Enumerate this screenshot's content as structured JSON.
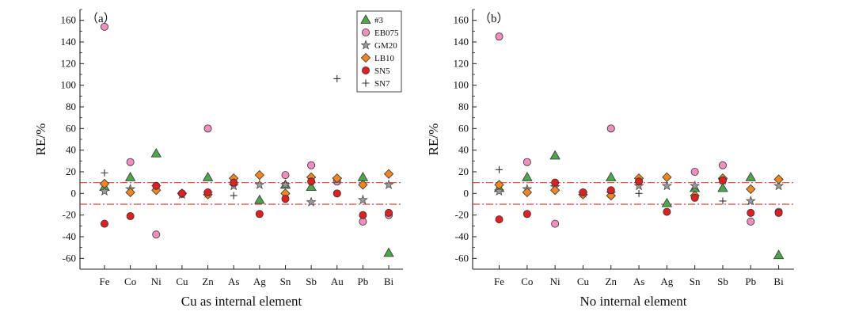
{
  "chart_data": [
    {
      "type": "scatter",
      "panel_label": "（a）",
      "xlabel": "Cu as internal element",
      "ylabel": "RE/%",
      "ylim": [
        -70,
        170
      ],
      "yticks": [
        -60,
        -40,
        -20,
        0,
        20,
        40,
        60,
        80,
        100,
        120,
        140,
        160
      ],
      "categories": [
        "Fe",
        "Co",
        "Ni",
        "Cu",
        "Zn",
        "As",
        "Ag",
        "Sn",
        "Sb",
        "Au",
        "Pb",
        "Bi"
      ],
      "reference_lines": [
        10,
        -10
      ],
      "legend": {
        "position": "top-right",
        "entries": [
          "#3",
          "EB075",
          "GM20",
          "LB10",
          "SN5",
          "SN7"
        ]
      },
      "series": [
        {
          "name": "#3",
          "marker": "triangle",
          "color": "#4aa84a",
          "values": [
            6,
            15,
            37,
            null,
            15,
            null,
            -6,
            8,
            6,
            null,
            15,
            -55
          ]
        },
        {
          "name": "EB075",
          "marker": "circle",
          "color": "#f08ec0",
          "values": [
            154,
            29,
            -38,
            null,
            60,
            null,
            null,
            17,
            26,
            11,
            -26,
            -20
          ]
        },
        {
          "name": "GM20",
          "marker": "star",
          "color": "#555555",
          "values": [
            2,
            4,
            6,
            -1,
            0,
            7,
            8,
            8,
            -8,
            13,
            -6,
            8
          ]
        },
        {
          "name": "LB10",
          "marker": "diamond",
          "color": "#f0861e",
          "values": [
            9,
            1,
            3,
            0,
            -1,
            14,
            17,
            0,
            15,
            14,
            8,
            18
          ]
        },
        {
          "name": "SN5",
          "marker": "circle",
          "color": "#e02020",
          "values": [
            -28,
            -21,
            7,
            0,
            1,
            10,
            -19,
            -5,
            11,
            0,
            -20,
            -18
          ]
        },
        {
          "name": "SN7",
          "marker": "plus",
          "color": "#333333",
          "values": [
            19,
            null,
            null,
            null,
            null,
            -2,
            null,
            null,
            null,
            106,
            null,
            null
          ]
        }
      ]
    },
    {
      "type": "scatter",
      "panel_label": "（b）",
      "xlabel": "No internal element",
      "ylabel": "RE/%",
      "ylim": [
        -70,
        170
      ],
      "yticks": [
        -60,
        -40,
        -20,
        0,
        20,
        40,
        60,
        80,
        100,
        120,
        140,
        160
      ],
      "categories": [
        "Fe",
        "Co",
        "Ni",
        "Cu",
        "Zn",
        "As",
        "Ag",
        "Sn",
        "Sb",
        "Pb",
        "Bi"
      ],
      "reference_lines": [
        10,
        -10
      ],
      "series": [
        {
          "name": "#3",
          "marker": "triangle",
          "color": "#4aa84a",
          "values": [
            5,
            15,
            35,
            null,
            15,
            null,
            -9,
            5,
            5,
            15,
            -57
          ]
        },
        {
          "name": "EB075",
          "marker": "circle",
          "color": "#f08ec0",
          "values": [
            145,
            29,
            -28,
            null,
            60,
            null,
            null,
            20,
            26,
            -26,
            -17
          ]
        },
        {
          "name": "GM20",
          "marker": "star",
          "color": "#555555",
          "values": [
            2,
            4,
            6,
            0,
            0,
            7,
            7,
            7,
            12,
            -7,
            7
          ]
        },
        {
          "name": "LB10",
          "marker": "diamond",
          "color": "#f0861e",
          "values": [
            8,
            1,
            3,
            -1,
            -2,
            14,
            15,
            -2,
            14,
            4,
            13
          ]
        },
        {
          "name": "SN5",
          "marker": "circle",
          "color": "#e02020",
          "values": [
            -24,
            -19,
            10,
            1,
            3,
            11,
            -17,
            -4,
            12,
            -18,
            -18
          ]
        },
        {
          "name": "SN7",
          "marker": "plus",
          "color": "#333333",
          "values": [
            22,
            null,
            null,
            null,
            null,
            0,
            null,
            null,
            -7,
            null,
            null
          ]
        }
      ]
    }
  ]
}
